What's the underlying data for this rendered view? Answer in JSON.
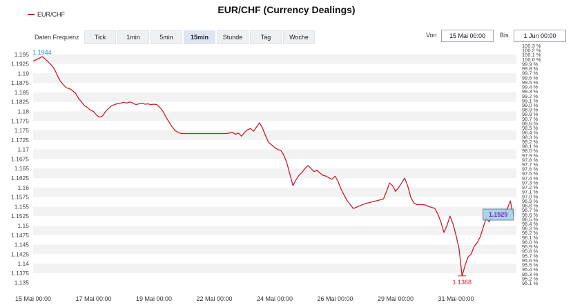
{
  "chart_data": {
    "type": "line",
    "title": "EUR/CHF (Currency Dealings)",
    "series": [
      {
        "name": "EUR/CHF",
        "color": "#cc1a2a",
        "points": [
          [
            0.0,
            1.1932
          ],
          [
            0.05,
            1.1936
          ],
          [
            0.1,
            1.194
          ],
          [
            0.15,
            1.1944
          ],
          [
            0.2,
            1.1938
          ],
          [
            0.25,
            1.193
          ],
          [
            0.3,
            1.1922
          ],
          [
            0.35,
            1.1912
          ],
          [
            0.4,
            1.1895
          ],
          [
            0.45,
            1.188
          ],
          [
            0.5,
            1.187
          ],
          [
            0.55,
            1.1862
          ],
          [
            0.6,
            1.186
          ],
          [
            0.65,
            1.1855
          ],
          [
            0.7,
            1.1848
          ],
          [
            0.75,
            1.1835
          ],
          [
            0.8,
            1.1825
          ],
          [
            0.85,
            1.1815
          ],
          [
            0.9,
            1.181
          ],
          [
            0.95,
            1.1803
          ],
          [
            1.0,
            1.18
          ],
          [
            1.05,
            1.179
          ],
          [
            1.1,
            1.1785
          ],
          [
            1.15,
            1.1788
          ],
          [
            1.2,
            1.18
          ],
          [
            1.25,
            1.1808
          ],
          [
            1.3,
            1.1815
          ],
          [
            1.35,
            1.1818
          ],
          [
            1.4,
            1.1821
          ],
          [
            1.45,
            1.1822
          ],
          [
            1.5,
            1.1824
          ],
          [
            1.55,
            1.1822
          ],
          [
            1.6,
            1.1825
          ],
          [
            1.65,
            1.1822
          ],
          [
            1.7,
            1.1818
          ],
          [
            1.75,
            1.182
          ],
          [
            1.8,
            1.1822
          ],
          [
            1.85,
            1.1819
          ],
          [
            1.9,
            1.182
          ],
          [
            1.95,
            1.1818
          ],
          [
            2.0,
            1.1819
          ],
          [
            2.05,
            1.1818
          ],
          [
            2.1,
            1.181
          ],
          [
            2.15,
            1.18
          ],
          [
            2.2,
            1.1785
          ],
          [
            2.25,
            1.1772
          ],
          [
            2.3,
            1.176
          ],
          [
            2.35,
            1.175
          ],
          [
            2.4,
            1.1745
          ],
          [
            2.45,
            1.1742
          ],
          [
            2.5,
            1.1742
          ],
          [
            2.6,
            1.1742
          ],
          [
            2.8,
            1.1742
          ],
          [
            3.0,
            1.1742
          ],
          [
            3.2,
            1.1742
          ],
          [
            3.3,
            1.1745
          ],
          [
            3.35,
            1.174
          ],
          [
            3.4,
            1.1743
          ],
          [
            3.45,
            1.1735
          ],
          [
            3.5,
            1.1745
          ],
          [
            3.55,
            1.1752
          ],
          [
            3.6,
            1.1755
          ],
          [
            3.65,
            1.1748
          ],
          [
            3.7,
            1.176
          ],
          [
            3.75,
            1.177
          ],
          [
            3.8,
            1.1755
          ],
          [
            3.85,
            1.1735
          ],
          [
            3.9,
            1.1718
          ],
          [
            3.95,
            1.1712
          ],
          [
            4.0,
            1.1705
          ],
          [
            4.05,
            1.17
          ],
          [
            4.1,
            1.1698
          ],
          [
            4.15,
            1.1685
          ],
          [
            4.2,
            1.1665
          ],
          [
            4.25,
            1.1635
          ],
          [
            4.3,
            1.1605
          ],
          [
            4.35,
            1.162
          ],
          [
            4.4,
            1.1632
          ],
          [
            4.45,
            1.164
          ],
          [
            4.5,
            1.165
          ],
          [
            4.55,
            1.1658
          ],
          [
            4.6,
            1.165
          ],
          [
            4.65,
            1.1642
          ],
          [
            4.7,
            1.1645
          ],
          [
            4.75,
            1.1638
          ],
          [
            4.8,
            1.1632
          ],
          [
            4.85,
            1.163
          ],
          [
            4.9,
            1.1625
          ],
          [
            4.95,
            1.1622
          ],
          [
            5.0,
            1.163
          ],
          [
            5.05,
            1.1615
          ],
          [
            5.1,
            1.1595
          ],
          [
            5.15,
            1.158
          ],
          [
            5.2,
            1.1565
          ],
          [
            5.25,
            1.1555
          ],
          [
            5.3,
            1.1545
          ],
          [
            5.35,
            1.1548
          ],
          [
            5.4,
            1.1552
          ],
          [
            5.5,
            1.1558
          ],
          [
            5.6,
            1.1562
          ],
          [
            5.7,
            1.1566
          ],
          [
            5.8,
            1.157
          ],
          [
            5.85,
            1.159
          ],
          [
            5.9,
            1.1612
          ],
          [
            5.95,
            1.1605
          ],
          [
            6.0,
            1.159
          ],
          [
            6.05,
            1.16
          ],
          [
            6.1,
            1.1612
          ],
          [
            6.15,
            1.1625
          ],
          [
            6.2,
            1.1605
          ],
          [
            6.25,
            1.1575
          ],
          [
            6.3,
            1.156
          ],
          [
            6.35,
            1.1555
          ],
          [
            6.4,
            1.1556
          ],
          [
            6.45,
            1.1555
          ],
          [
            6.5,
            1.1554
          ],
          [
            6.55,
            1.155
          ],
          [
            6.6,
            1.1548
          ],
          [
            6.65,
            1.1545
          ],
          [
            6.7,
            1.153
          ],
          [
            6.75,
            1.151
          ],
          [
            6.8,
            1.1482
          ],
          [
            6.85,
            1.15
          ],
          [
            6.9,
            1.1525
          ],
          [
            6.95,
            1.1505
          ],
          [
            7.0,
            1.1475
          ],
          [
            7.05,
            1.144
          ],
          [
            7.1,
            1.1368
          ],
          [
            7.15,
            1.1395
          ],
          [
            7.2,
            1.1418
          ],
          [
            7.25,
            1.1425
          ],
          [
            7.3,
            1.1445
          ],
          [
            7.35,
            1.1455
          ],
          [
            7.4,
            1.147
          ],
          [
            7.45,
            1.1495
          ],
          [
            7.5,
            1.152
          ],
          [
            7.55,
            1.151
          ],
          [
            7.6,
            1.1525
          ],
          [
            7.65,
            1.153
          ],
          [
            7.7,
            1.1535
          ],
          [
            7.75,
            1.1528
          ],
          [
            7.8,
            1.1535
          ],
          [
            7.85,
            1.1545
          ],
          [
            7.9,
            1.1565
          ],
          [
            7.93,
            1.154
          ],
          [
            7.95,
            1.1529
          ]
        ]
      }
    ],
    "xticks": [
      {
        "pos": 0,
        "label": "15 Mai 00:00"
      },
      {
        "pos": 1,
        "label": "17 Mai 00:00"
      },
      {
        "pos": 2,
        "label": "19 Mai 00:00"
      },
      {
        "pos": 3,
        "label": "22 Mai 00:00"
      },
      {
        "pos": 4,
        "label": "24 Mai 00:00"
      },
      {
        "pos": 5,
        "label": "26 Mai 00:00"
      },
      {
        "pos": 6,
        "label": "29 Mai 00:00"
      },
      {
        "pos": 7,
        "label": "31 Mai 00:00"
      }
    ],
    "yticks": [
      "1.195",
      "1.1925",
      "1.19",
      "1.1875",
      "1.185",
      "1.1825",
      "1.18",
      "1.1775",
      "1.175",
      "1.1725",
      "1.17",
      "1.1675",
      "1.165",
      "1.1625",
      "1.16",
      "1.1575",
      "1.155",
      "1.1525",
      "1.15",
      "1.1475",
      "1.145",
      "1.1425",
      "1.14",
      "1.1375",
      "1.135"
    ],
    "ylim": [
      1.1335,
      1.1955
    ],
    "xlim": [
      0,
      8
    ],
    "right_ticks": [
      "100.3 %",
      "100.2 %",
      "100.1 %",
      "100.0 %",
      "99.9 %",
      "99.8 %",
      "99.7 %",
      "99.6 %",
      "99.5 %",
      "99.4 %",
      "99.3 %",
      "99.2 %",
      "99.1 %",
      "99.0 %",
      "98.9 %",
      "98.8 %",
      "98.7 %",
      "98.6 %",
      "98.5 %",
      "98.4 %",
      "98.3 %",
      "98.2 %",
      "98.1 %",
      "98.0 %",
      "97.9 %",
      "97.8 %",
      "97.7 %",
      "97.6 %",
      "97.5 %",
      "97.4 %",
      "97.3 %",
      "97.2 %",
      "97.1 %",
      "97.0 %",
      "96.9 %",
      "96.8 %",
      "96.7 %",
      "96.6 %",
      "96.5 %",
      "96.4 %",
      "96.3 %",
      "96.2 %",
      "96.1 %",
      "96.0 %",
      "95.9 %",
      "95.8 %",
      "95.7 %",
      "95.6 %",
      "95.5 %",
      "95.4 %",
      "95.3 %",
      "95.2 %",
      "95.1 %"
    ],
    "annotations": {
      "high": {
        "label": "1.1944",
        "x": 0.15,
        "y": 1.1944,
        "color": "#2a8fc4"
      },
      "low": {
        "label": "1.1368",
        "x": 7.1,
        "y": 1.1368,
        "color": "#cc1a2a"
      },
      "last": {
        "label": "1.1529",
        "x": 7.95,
        "y": 1.1529,
        "text_color": "#7a2fd0"
      }
    },
    "grid": "horizontal-bands",
    "legend": "top-left"
  },
  "ui": {
    "frequency_label": "Daten Frequenz",
    "frequency_options": [
      "Tick",
      "1min",
      "5min",
      "15min",
      "Stunde",
      "Tag",
      "Woche"
    ],
    "frequency_selected": "15min",
    "from_label": "Von",
    "from_value": "15 Mai 00:00",
    "to_label": "Bis",
    "to_value": "1 Jun 00:00"
  }
}
